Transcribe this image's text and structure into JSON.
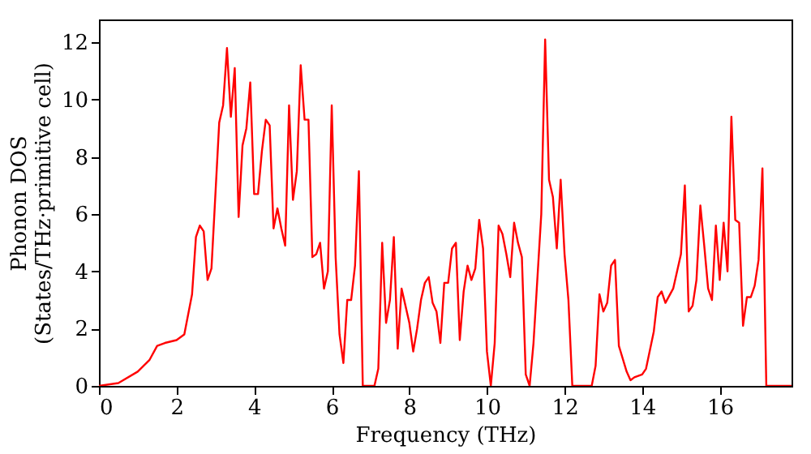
{
  "chart_data": {
    "type": "line",
    "xlabel": "Frequency (THz)",
    "ylabel": "Phonon DOS\n(States/THz·primitive cell)",
    "x": [
      0,
      0.5,
      1,
      1.3,
      1.5,
      1.7,
      2.0,
      2.2,
      2.4,
      2.5,
      2.6,
      2.7,
      2.8,
      2.9,
      3.1,
      3.2,
      3.3,
      3.4,
      3.5,
      3.6,
      3.7,
      3.8,
      3.9,
      4.0,
      4.1,
      4.2,
      4.3,
      4.4,
      4.5,
      4.6,
      4.7,
      4.8,
      4.9,
      5.0,
      5.1,
      5.2,
      5.3,
      5.4,
      5.5,
      5.6,
      5.7,
      5.8,
      5.9,
      6.0,
      6.1,
      6.2,
      6.3,
      6.4,
      6.5,
      6.6,
      6.7,
      6.8,
      7.1,
      7.2,
      7.3,
      7.4,
      7.5,
      7.6,
      7.7,
      7.8,
      7.9,
      8.0,
      8.1,
      8.2,
      8.3,
      8.4,
      8.5,
      8.6,
      8.7,
      8.8,
      8.9,
      9.0,
      9.1,
      9.2,
      9.3,
      9.4,
      9.5,
      9.6,
      9.7,
      9.8,
      9.9,
      10.0,
      10.1,
      10.2,
      10.3,
      10.4,
      10.5,
      10.6,
      10.7,
      10.8,
      10.9,
      11.0,
      11.1,
      11.2,
      11.4,
      11.5,
      11.6,
      11.7,
      11.8,
      11.9,
      12.0,
      12.1,
      12.2,
      12.7,
      12.8,
      12.9,
      13.0,
      13.1,
      13.2,
      13.3,
      13.4,
      13.6,
      13.7,
      13.8,
      14.0,
      14.1,
      14.3,
      14.4,
      14.5,
      14.6,
      14.8,
      14.9,
      15.0,
      15.1,
      15.2,
      15.3,
      15.4,
      15.5,
      15.6,
      15.7,
      15.8,
      15.9,
      16.0,
      16.1,
      16.2,
      16.3,
      16.4,
      16.5,
      16.6,
      16.7,
      16.8,
      16.9,
      17.0,
      17.1,
      17.2,
      17.85
    ],
    "series": [
      {
        "color": "#ff0000",
        "values": [
          0,
          0.1,
          0.5,
          0.9,
          1.4,
          1.5,
          1.6,
          1.8,
          3.2,
          5.2,
          5.6,
          5.4,
          3.7,
          4.1,
          9.2,
          9.8,
          11.8,
          9.4,
          11.1,
          5.9,
          8.4,
          9.0,
          10.6,
          6.7,
          6.7,
          8.2,
          9.3,
          9.1,
          5.5,
          6.2,
          5.5,
          4.9,
          9.8,
          6.5,
          7.5,
          11.2,
          9.3,
          9.3,
          4.5,
          4.6,
          5.0,
          3.4,
          4.0,
          9.8,
          4.5,
          1.8,
          0.8,
          3.0,
          3.0,
          4.2,
          7.5,
          0,
          0,
          0.6,
          5.0,
          2.2,
          3.0,
          5.2,
          1.3,
          3.4,
          2.8,
          2.2,
          1.2,
          2.0,
          3.0,
          3.6,
          3.8,
          2.9,
          2.6,
          1.5,
          3.6,
          3.6,
          4.8,
          5.0,
          1.6,
          3.3,
          4.2,
          3.7,
          4.1,
          5.8,
          4.8,
          1.2,
          0,
          1.5,
          5.6,
          5.3,
          4.6,
          3.8,
          5.7,
          5.0,
          4.5,
          0.4,
          0,
          1.5,
          6.0,
          12.1,
          7.2,
          6.6,
          4.8,
          7.2,
          4.6,
          3.0,
          0,
          0,
          0.7,
          3.2,
          2.6,
          2.9,
          4.2,
          4.4,
          1.4,
          0.5,
          0.2,
          0.3,
          0.4,
          0.6,
          1.9,
          3.1,
          3.3,
          2.9,
          3.4,
          4.0,
          4.6,
          7.0,
          2.6,
          2.8,
          3.7,
          6.3,
          4.9,
          3.4,
          3.0,
          5.6,
          3.7,
          5.7,
          4.0,
          9.4,
          5.8,
          5.7,
          2.1,
          3.1,
          3.1,
          3.5,
          4.4,
          7.6,
          0,
          0
        ]
      }
    ],
    "xlim": [
      0,
      17.85
    ],
    "ylim": [
      0,
      12.8
    ],
    "xticks": [
      0,
      2,
      4,
      6,
      8,
      10,
      12,
      14,
      16
    ],
    "yticks": [
      0,
      2,
      4,
      6,
      8,
      10,
      12
    ],
    "grid": false,
    "line_style": "solid",
    "marker": "none"
  }
}
